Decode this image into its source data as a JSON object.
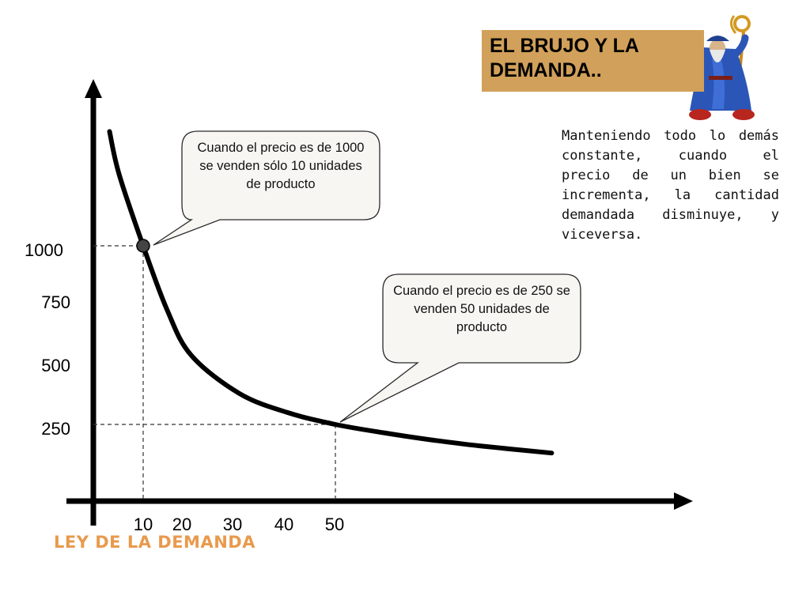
{
  "header": {
    "title_line1": "EL BRUJO Y LA",
    "title_line2": "DEMANDA.."
  },
  "description": "Manteniendo todo lo demás constante, cuando el precio de un bien se incrementa, la cantidad demandada disminuye, y viceversa.",
  "footer": {
    "label": "LEY DE LA DEMANDA"
  },
  "icons": {
    "wizard": "wizard-icon"
  },
  "colors": {
    "title_box": "#d1a05a",
    "footer_label": "#e89a4d",
    "bubble_fill": "#f7f6f3",
    "curve": "#000000"
  },
  "chart_data": {
    "type": "line",
    "title": "",
    "xlabel": "",
    "ylabel": "",
    "x_ticks": [
      "10",
      "20",
      "30",
      "40",
      "50"
    ],
    "y_ticks": [
      "1000",
      "750",
      "500",
      "250"
    ],
    "series": [
      {
        "x": [
          3,
          5,
          10,
          15,
          20,
          30,
          40,
          50,
          60,
          70,
          80,
          95
        ],
        "y": [
          1480,
          1300,
          1000,
          730,
          540,
          380,
          300,
          250,
          215,
          185,
          160,
          130
        ]
      }
    ],
    "points": [
      {
        "x": 10,
        "y": 1000
      },
      {
        "x": 50,
        "y": 250
      }
    ],
    "annotations": [
      {
        "text": "Cuando el precio es de 1000 se venden sólo 10 unidades de producto",
        "x": 10,
        "y": 1000
      },
      {
        "text": "Cuando el precio es de 250 se venden 50 unidades de producto",
        "x": 50,
        "y": 250
      }
    ],
    "grid": false,
    "legend": "none"
  }
}
